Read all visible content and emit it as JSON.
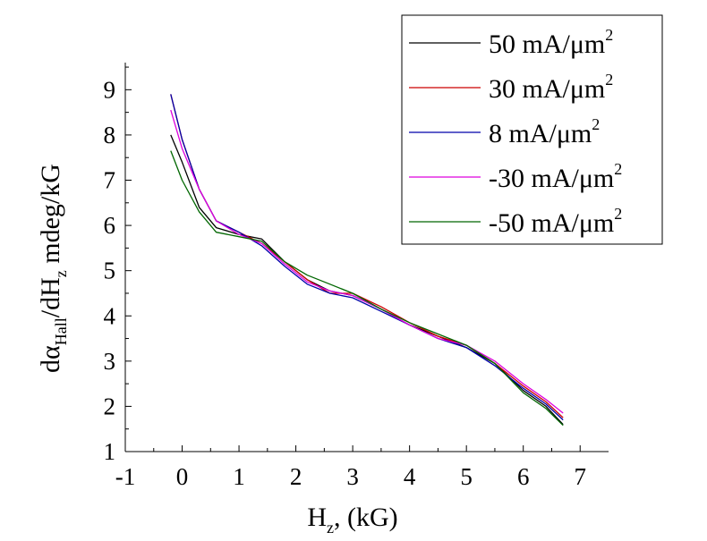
{
  "chart_data": {
    "type": "line",
    "xlabel": {
      "main": "H",
      "sub": "z",
      "rest": ", (kG)"
    },
    "ylabel": {
      "part1": "dα",
      "sub1": "Hall",
      "part2": "/dH",
      "sub2": "z",
      "part3": " mdeg/kG"
    },
    "xlim": [
      -1,
      7.5
    ],
    "ylim": [
      1,
      9.6
    ],
    "xticks": [
      -1,
      0,
      1,
      2,
      3,
      4,
      5,
      6,
      7
    ],
    "yticks": [
      1,
      2,
      3,
      4,
      5,
      6,
      7,
      8,
      9
    ],
    "grid": false,
    "legend_position": "top-right",
    "series": [
      {
        "name": "50 mA/μm",
        "sup": "2",
        "color": "#000000",
        "x": [
          -0.2,
          0.0,
          0.3,
          0.6,
          1.0,
          1.4,
          1.8,
          2.2,
          2.6,
          3.0,
          3.5,
          4.0,
          4.5,
          5.0,
          5.5,
          6.0,
          6.4,
          6.7
        ],
        "y": [
          8.0,
          7.4,
          6.4,
          5.95,
          5.8,
          5.7,
          5.2,
          4.8,
          4.55,
          4.45,
          4.15,
          3.8,
          3.55,
          3.3,
          2.95,
          2.35,
          2.0,
          1.6
        ]
      },
      {
        "name": "30 mA/μm",
        "sup": "2",
        "color": "#cc0000",
        "x": [
          -0.2,
          0.0,
          0.3,
          0.6,
          1.0,
          1.4,
          1.8,
          2.2,
          2.6,
          3.0,
          3.5,
          4.0,
          4.5,
          5.0,
          5.5,
          6.0,
          6.4,
          6.7
        ],
        "y": [
          8.9,
          7.9,
          6.8,
          6.1,
          5.85,
          5.6,
          5.2,
          4.8,
          4.5,
          4.5,
          4.2,
          3.85,
          3.55,
          3.35,
          2.95,
          2.45,
          2.1,
          1.75
        ]
      },
      {
        "name": "8 mA/μm",
        "sup": "2",
        "color": "#0000aa",
        "x": [
          -0.2,
          0.0,
          0.3,
          0.6,
          1.0,
          1.4,
          1.8,
          2.2,
          2.6,
          3.0,
          3.5,
          4.0,
          4.5,
          5.0,
          5.5,
          6.0,
          6.4,
          6.7
        ],
        "y": [
          8.9,
          7.9,
          6.8,
          6.1,
          5.85,
          5.55,
          5.1,
          4.7,
          4.5,
          4.4,
          4.1,
          3.8,
          3.5,
          3.3,
          2.9,
          2.4,
          2.05,
          1.7
        ]
      },
      {
        "name": "-30 mA/μm",
        "sup": "2",
        "color": "#dd00dd",
        "x": [
          -0.2,
          0.0,
          0.3,
          0.6,
          1.0,
          1.4,
          1.8,
          2.2,
          2.6,
          3.0,
          3.5,
          4.0,
          4.5,
          5.0,
          5.5,
          6.0,
          6.4,
          6.7
        ],
        "y": [
          8.55,
          7.7,
          6.8,
          6.1,
          5.8,
          5.6,
          5.15,
          4.75,
          4.55,
          4.45,
          4.15,
          3.8,
          3.5,
          3.35,
          3.0,
          2.5,
          2.15,
          1.85
        ]
      },
      {
        "name": "-50 mA/μm",
        "sup": "2",
        "color": "#006600",
        "x": [
          -0.2,
          0.0,
          0.3,
          0.6,
          1.0,
          1.4,
          1.8,
          2.2,
          2.6,
          3.0,
          3.5,
          4.0,
          4.5,
          5.0,
          5.5,
          6.0,
          6.4,
          6.7
        ],
        "y": [
          7.65,
          7.0,
          6.3,
          5.85,
          5.75,
          5.65,
          5.2,
          4.9,
          4.7,
          4.5,
          4.15,
          3.85,
          3.6,
          3.35,
          2.95,
          2.3,
          1.95,
          1.58
        ]
      }
    ]
  }
}
